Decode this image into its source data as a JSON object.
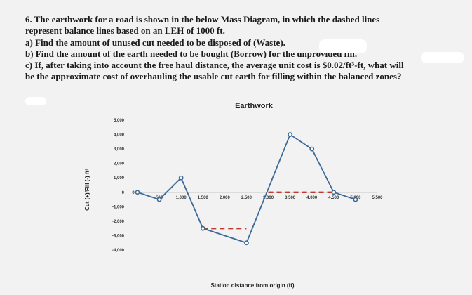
{
  "problem": {
    "line1": "6. The earthwork for a road is shown in the below Mass Diagram, in which the dashed lines",
    "line2": "represent balance lines based on an LEH of 1000 ft.",
    "part_a": "a) Find the amount of unused cut needed to be disposed of (Waste).",
    "part_b": "b) Find the amount of the earth needed to be bought (Borrow) for the unprovided fill.",
    "part_c1": "c) If, after taking into account the free haul distance, the average unit cost is $0.02/ft³-ft, what will",
    "part_c2": "be the approximate cost of overhauling the usable cut earth for filling within the balanced zones?"
  },
  "chart_data": {
    "type": "line",
    "title": "Earthwork",
    "xlabel": "Station distance from origin (ft)",
    "ylabel": "Cut (+)/Fill (-) ft³",
    "xlim": [
      0,
      5500
    ],
    "ylim": [
      -4000,
      5000
    ],
    "x_ticks": [
      500,
      1000,
      1500,
      2000,
      2500,
      3000,
      3500,
      4000,
      4500,
      5000,
      5500
    ],
    "x_tick_labels": [
      "500",
      "1,000",
      "1,500",
      "2,000",
      "2,500",
      "3,000",
      "3,500",
      "4,000",
      "4,500",
      "5,000",
      "5,500"
    ],
    "y_ticks": [
      5000,
      4000,
      3000,
      2000,
      1000,
      0,
      -1000,
      -2000,
      -3000,
      -4000
    ],
    "y_tick_labels": [
      "5,000",
      "4,000",
      "3,000",
      "2,000",
      "1,000",
      "0",
      "-1,000",
      "-2,000",
      "-3,000",
      "-4,000"
    ],
    "origin_label": "0",
    "series": [
      {
        "x": [
          0,
          500,
          1000,
          1500,
          2500,
          3500,
          4000,
          4500,
          5000
        ],
        "y": [
          0,
          -500,
          1000,
          -2500,
          -3500,
          4000,
          3000,
          0,
          -500
        ],
        "color": "#3d6a97"
      }
    ],
    "balance_lines": [
      {
        "x": [
          1500,
          2500
        ],
        "y": -2500
      },
      {
        "x": [
          3000,
          4500
        ],
        "y": 0
      }
    ],
    "balance_color": "#c0392b"
  }
}
